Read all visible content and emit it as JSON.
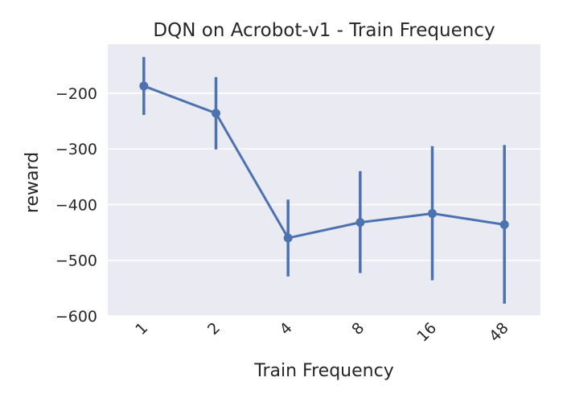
{
  "chart_data": {
    "type": "line",
    "title": "DQN on Acrobot-v1 - Train Frequency",
    "xlabel": "Train Frequency",
    "ylabel": "reward",
    "categories": [
      "1",
      "2",
      "4",
      "8",
      "16",
      "48"
    ],
    "series": [
      {
        "values": [
          -187,
          -236,
          -460,
          -432,
          -416,
          -436
        ],
        "error_low": [
          -239,
          -301,
          -529,
          -523,
          -536,
          -578
        ],
        "error_high": [
          -135,
          -171,
          -391,
          -340,
          -295,
          -293
        ]
      }
    ],
    "ylim": [
      -600,
      -112
    ],
    "yticks": [
      {
        "value": -200,
        "label": "−200"
      },
      {
        "value": -300,
        "label": "−300"
      },
      {
        "value": -400,
        "label": "−400"
      },
      {
        "value": -500,
        "label": "−500"
      },
      {
        "value": -600,
        "label": "−600"
      }
    ],
    "grid": true,
    "colors": {
      "background": "#eaeaf2",
      "grid": "#ffffff",
      "series": "#4c72b0"
    }
  }
}
